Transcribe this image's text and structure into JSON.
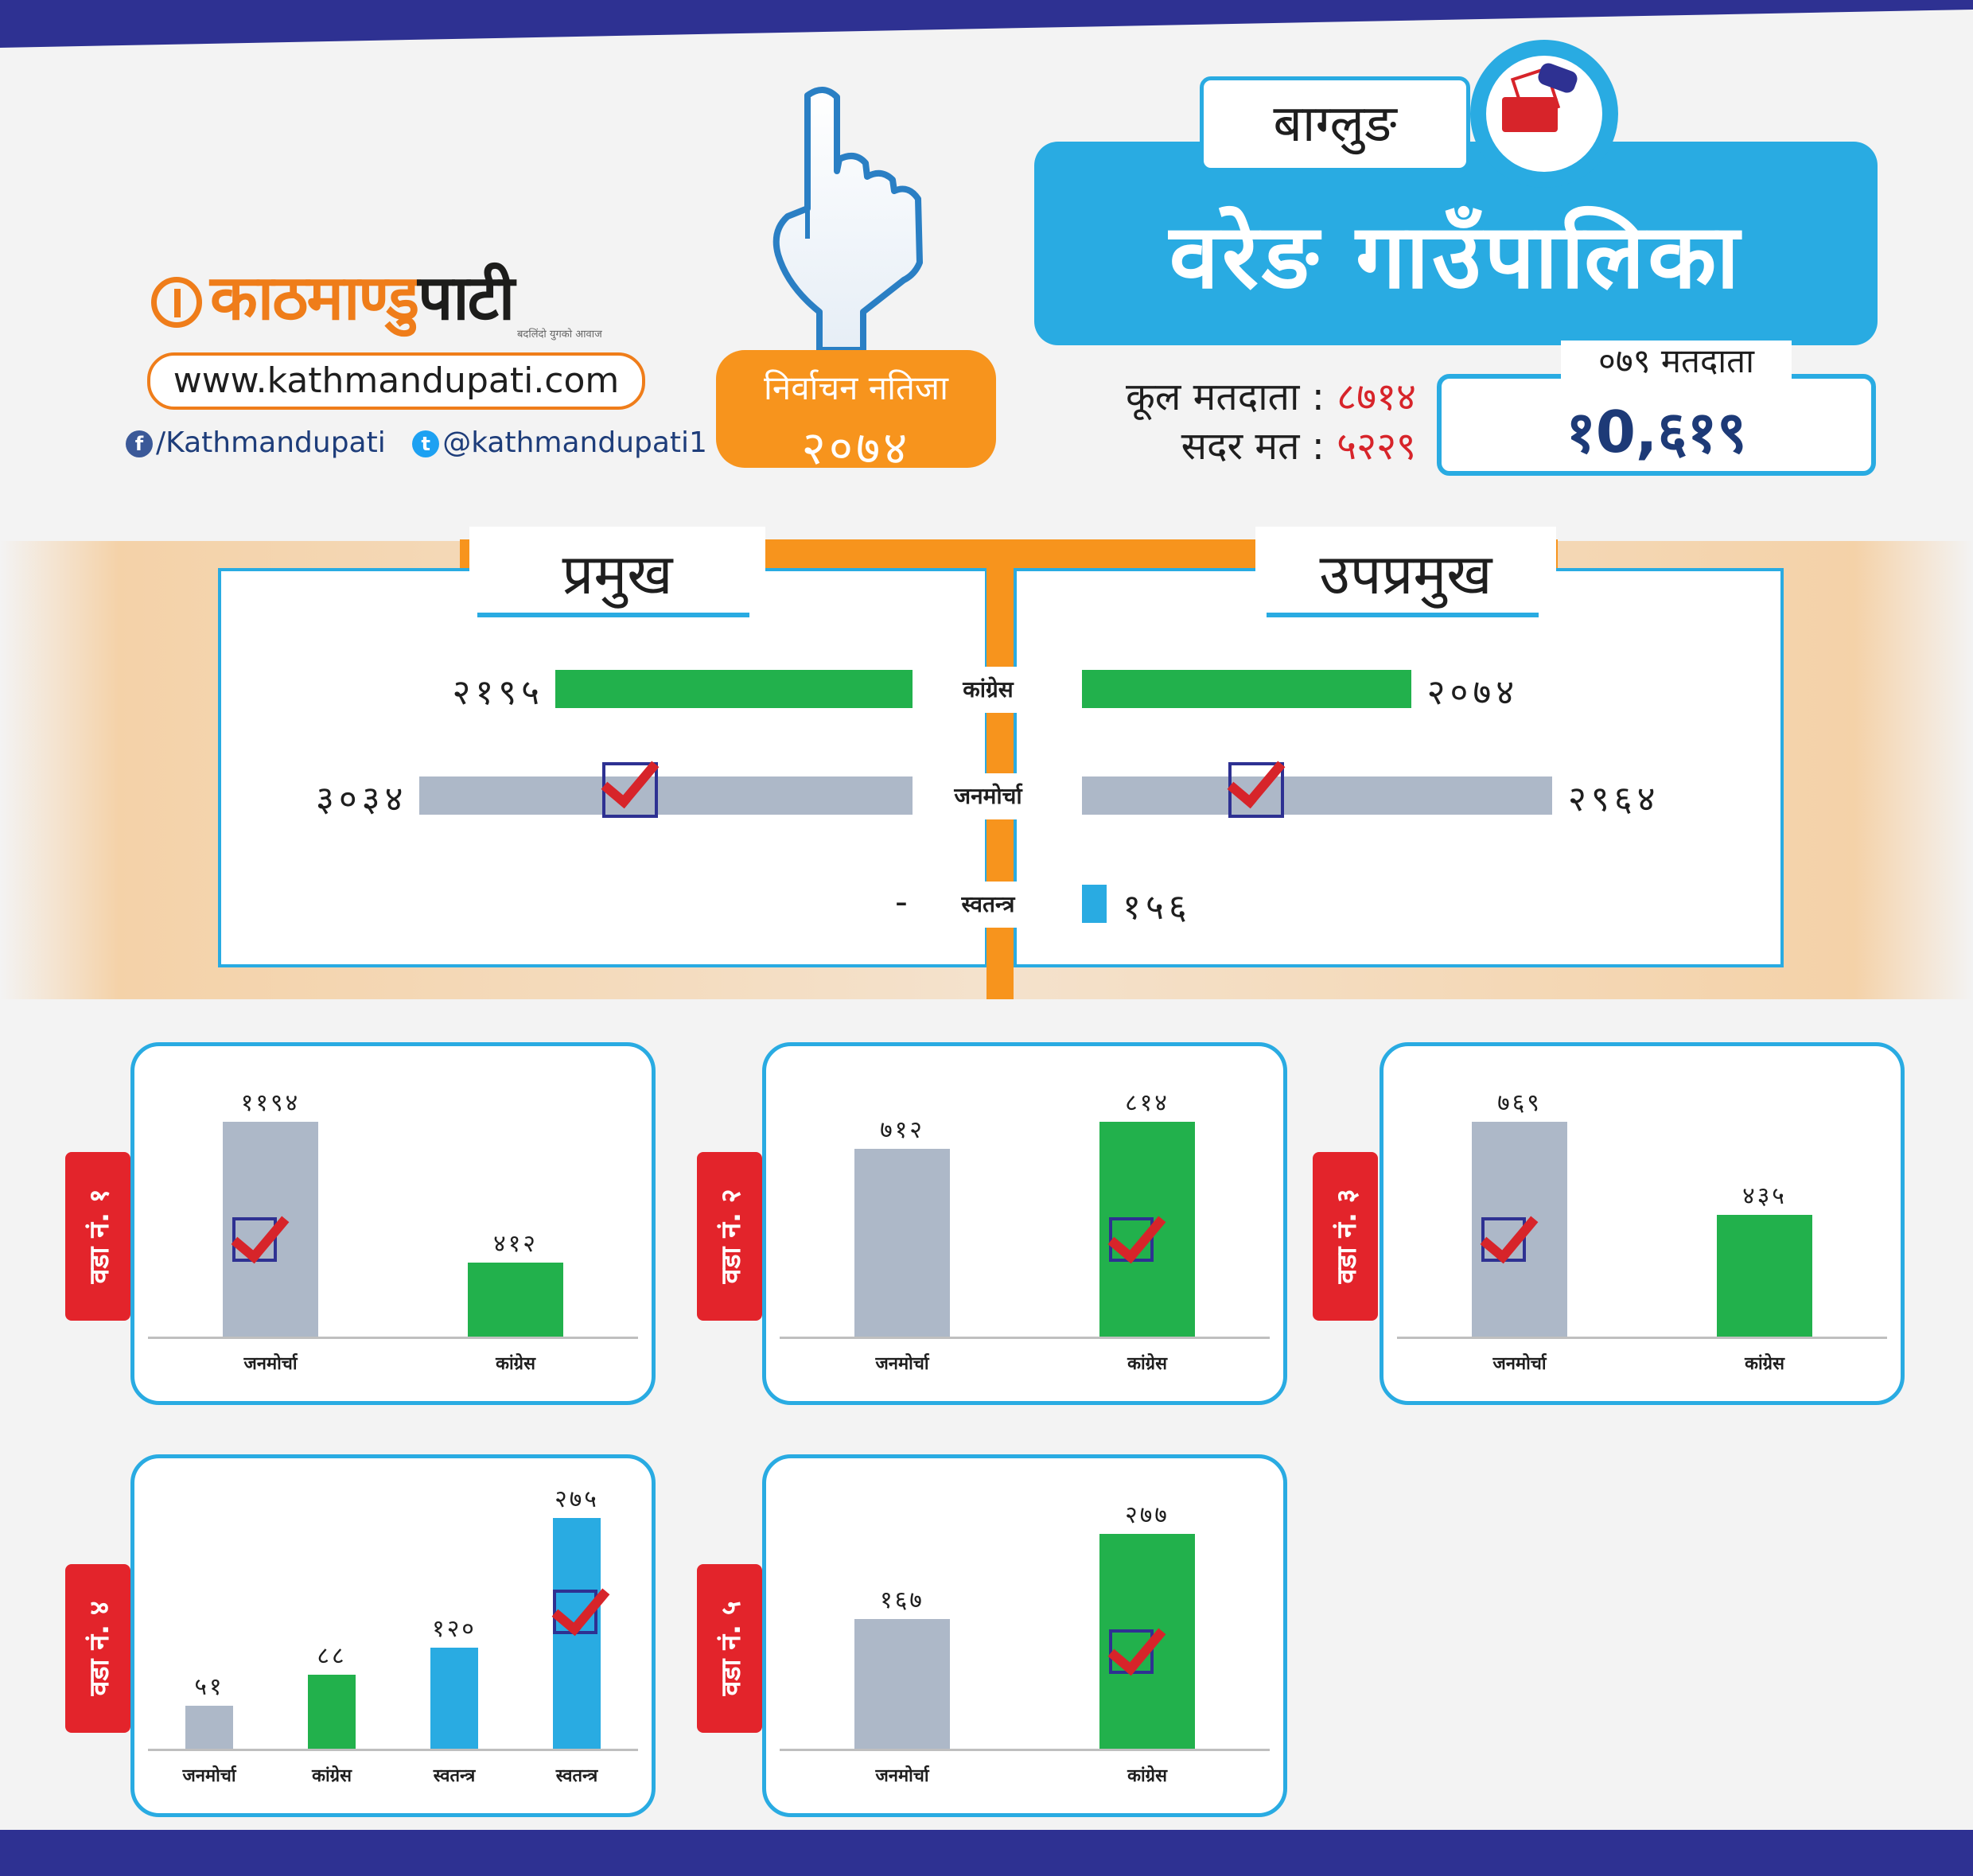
{
  "header": {
    "brand_part1": "काठमाण्डु",
    "brand_part2": "पाटी",
    "tagline": "बदलिंदो युगको आवाज",
    "website": "www.kathmandupati.com",
    "facebook": "/Kathmandupati",
    "twitter": "@kathmandupati1",
    "badge_line1": "निर्वाचन नतिजा",
    "badge_line2": "२०७४",
    "district": "बाग्लुङ",
    "municipality": "वरेङ गाउँपालिका",
    "total_voters_label": "कूल मतदाता :",
    "total_voters_value": "८७१४",
    "valid_votes_label": "सदर मत :",
    "valid_votes_value": "५२२९",
    "voters_079_label": "०७९ मतदाता",
    "voters_079_value": "१0,६१९"
  },
  "colors": {
    "congress": "#22b14c",
    "janamorcha": "#adb8c8",
    "independent": "#29abe2",
    "accent_blue": "#29abe2",
    "accent_orange": "#f7941d",
    "ward_tag": "#e3242b",
    "navy": "#2e3192"
  },
  "icons": [
    "finger-vote-icon",
    "ballot-box-icon",
    "facebook-icon",
    "twitter-icon",
    "checkmark-icon"
  ],
  "chart_data": [
    {
      "type": "bar",
      "orientation": "horizontal",
      "title": "प्रमुख",
      "categories": [
        "कांग्रेस",
        "जनमोर्चा",
        "स्वतन्त्र"
      ],
      "values": [
        2195,
        3034,
        null
      ],
      "value_labels": [
        "२१९५",
        "३०३४",
        "-"
      ],
      "winner": "जनमोर्चा"
    },
    {
      "type": "bar",
      "orientation": "horizontal",
      "title": "उपप्रमुख",
      "categories": [
        "कांग्रेस",
        "जनमोर्चा",
        "स्वतन्त्र"
      ],
      "values": [
        2074,
        2964,
        156
      ],
      "value_labels": [
        "२०७४",
        "२९६४",
        "१५६"
      ],
      "winner": "जनमोर्चा"
    },
    {
      "type": "bar",
      "title": "वडा नं. १",
      "categories": [
        "जनमोर्चा",
        "कांग्रेस"
      ],
      "values": [
        1194,
        412
      ],
      "value_labels": [
        "११९४",
        "४१२"
      ],
      "winner_index": 0
    },
    {
      "type": "bar",
      "title": "वडा नं. २",
      "categories": [
        "जनमोर्चा",
        "कांग्रेस"
      ],
      "values": [
        712,
        814
      ],
      "value_labels": [
        "७१२",
        "८१४"
      ],
      "winner_index": 1
    },
    {
      "type": "bar",
      "title": "वडा नं. ३",
      "categories": [
        "जनमोर्चा",
        "कांग्रेस"
      ],
      "values": [
        769,
        435
      ],
      "value_labels": [
        "७६९",
        "४३५"
      ],
      "winner_index": 0
    },
    {
      "type": "bar",
      "title": "वडा नं. ४",
      "categories": [
        "जनमोर्चा",
        "कांग्रेस",
        "स्वतन्त्र",
        "स्वतन्त्र"
      ],
      "values": [
        51,
        88,
        120,
        275
      ],
      "value_labels": [
        "५१",
        "८८",
        "१२०",
        "२७५"
      ],
      "winner_index": 3
    },
    {
      "type": "bar",
      "title": "वडा नं. ५",
      "categories": [
        "जनमोर्चा",
        "कांग्रेस"
      ],
      "values": [
        167,
        277
      ],
      "value_labels": [
        "१६७",
        "२७७"
      ],
      "winner_index": 1
    }
  ]
}
